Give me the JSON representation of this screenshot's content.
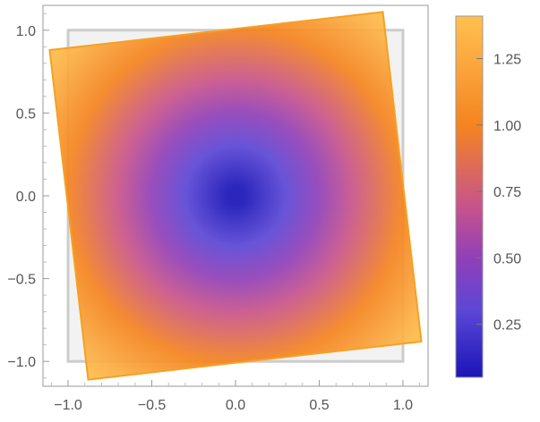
{
  "chart_data": {
    "type": "heatmap",
    "title": "",
    "xlabel": "",
    "ylabel": "",
    "xlim": [
      -1.15,
      1.15
    ],
    "ylim": [
      -1.15,
      1.15
    ],
    "x_ticks": [
      -1.0,
      -0.5,
      0.0,
      0.5,
      1.0
    ],
    "y_ticks": [
      -1.0,
      -0.5,
      0.0,
      0.5,
      1.0
    ],
    "x_tick_labels": [
      "−1.0",
      "−0.5",
      "0.0",
      "0.5",
      "1.0"
    ],
    "y_tick_labels": [
      "−1.0",
      "−0.5",
      "0.0",
      "0.5",
      "1.0"
    ],
    "reference_square": {
      "corners": [
        [
          -1,
          -1
        ],
        [
          1,
          -1
        ],
        [
          1,
          1
        ],
        [
          -1,
          1
        ]
      ],
      "fill": "#f2f2f2",
      "stroke": "#cccccc"
    },
    "rotated_square": {
      "corners": [
        [
          -1.11,
          0.88
        ],
        [
          0.88,
          1.11
        ],
        [
          1.11,
          -0.88
        ],
        [
          -0.88,
          -1.11
        ]
      ],
      "color_function": "distance from origin",
      "center_value": 0.05,
      "corner_value": 1.41
    },
    "colorbar": {
      "range": [
        0.05,
        1.41
      ],
      "ticks": [
        0.25,
        0.5,
        0.75,
        1.0,
        1.25
      ],
      "tick_labels": [
        "0.25",
        "0.50",
        "0.75",
        "1.00",
        "1.25"
      ],
      "stops": [
        {
          "value": 0.05,
          "color": "#1a14b8"
        },
        {
          "value": 0.3,
          "color": "#5b47d6"
        },
        {
          "value": 0.5,
          "color": "#9140b8"
        },
        {
          "value": 0.7,
          "color": "#c9548a"
        },
        {
          "value": 1.0,
          "color": "#f5841f"
        },
        {
          "value": 1.25,
          "color": "#fbaa40"
        },
        {
          "value": 1.41,
          "color": "#ffc04d"
        }
      ]
    },
    "grid": false,
    "legend": "colorbar-right"
  }
}
